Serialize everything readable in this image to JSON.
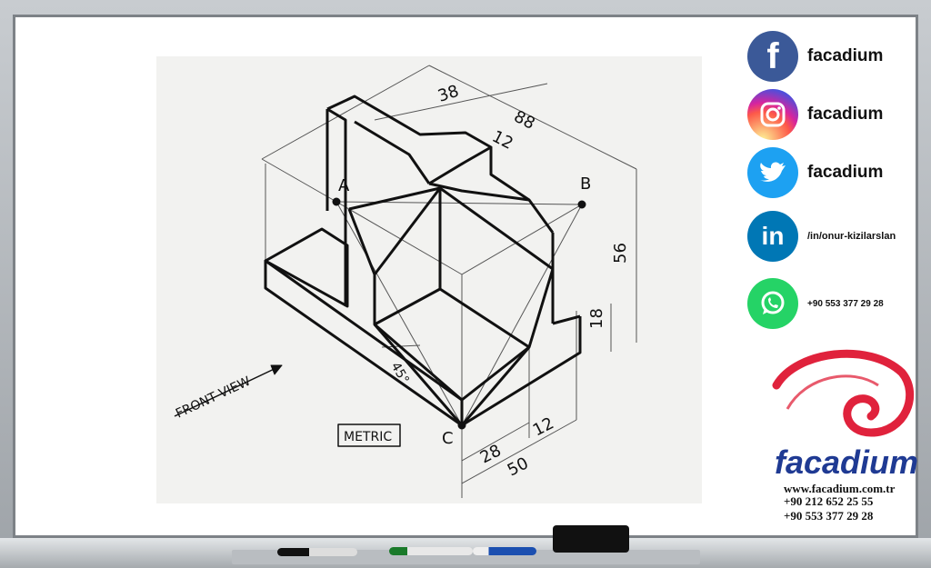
{
  "drawing": {
    "dims": {
      "d88": "88",
      "d38": "38",
      "d12_top": "12",
      "d56": "56",
      "d18": "18",
      "d28": "28",
      "d12_bottom": "12",
      "d50": "50",
      "angle": "45°"
    },
    "points": {
      "a": "A",
      "b": "B",
      "c": "C"
    },
    "front_view": "FRONT VIEW",
    "metric": "METRIC"
  },
  "social": [
    {
      "label": "facadium",
      "icon": "facebook-icon",
      "color": "#3b5998"
    },
    {
      "label": "facadium",
      "icon": "instagram-icon",
      "color": "#d6249f"
    },
    {
      "label": "facadium",
      "icon": "twitter-icon",
      "color": "#1da1f2"
    },
    {
      "label": "/in/onur-kizilarslan",
      "icon": "linkedin-icon",
      "color": "#0077b5"
    },
    {
      "label": "+90 553 377 29 28",
      "icon": "whatsapp-icon",
      "color": "#25d366"
    }
  ],
  "brand": {
    "name": "facadium",
    "website": "www.facadium.com.tr",
    "phone1": "+90 212 652 25 55",
    "phone2": "+90 553 377 29 28"
  }
}
